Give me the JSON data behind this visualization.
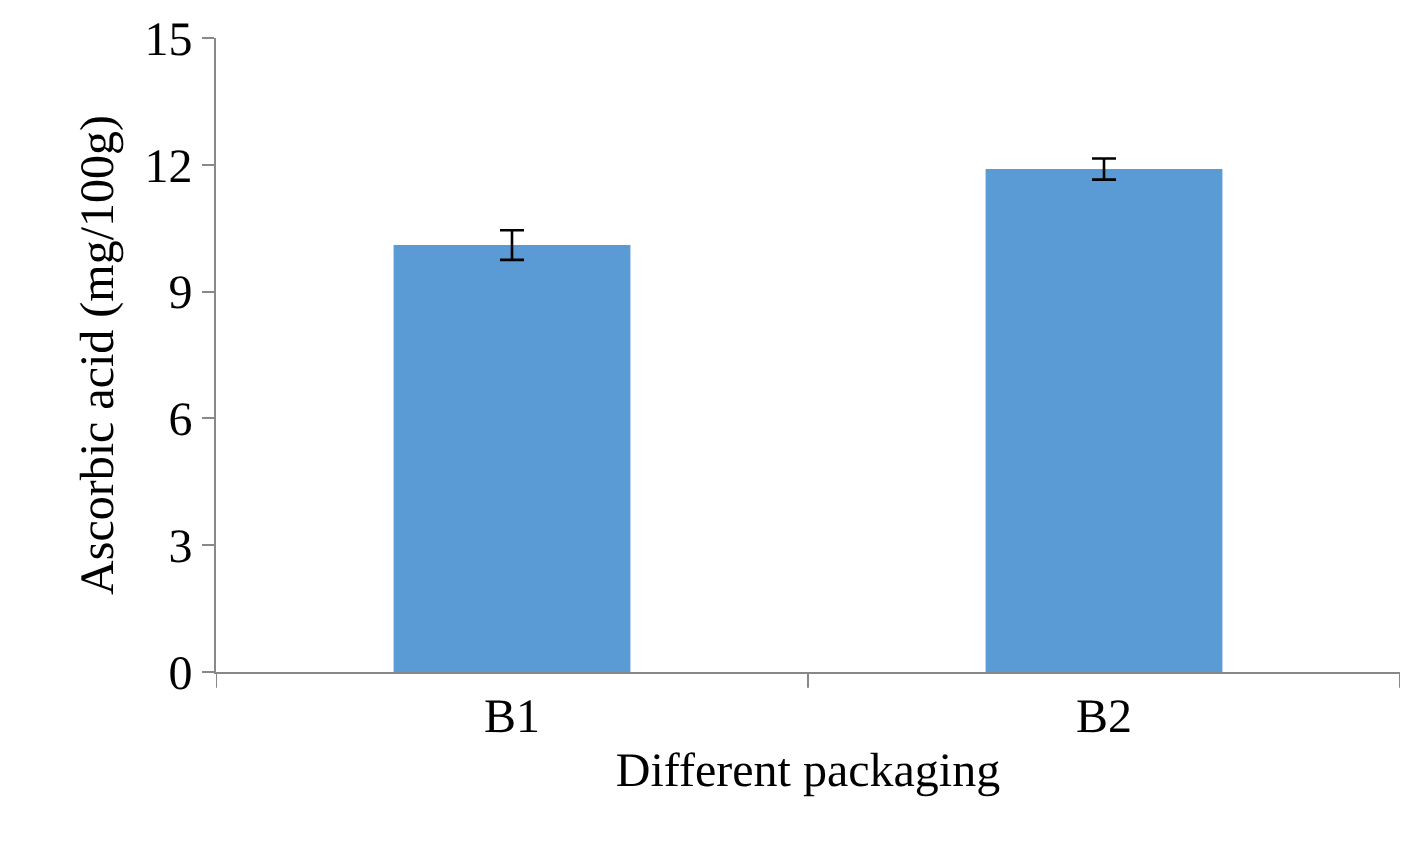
{
  "chart_data": {
    "type": "bar",
    "xlabel": "Different packaging",
    "ylabel": "Ascorbic acid (mg/100g)",
    "categories": [
      "B1",
      "B2"
    ],
    "values": [
      10.1,
      11.9
    ],
    "errors": [
      0.35,
      0.25
    ],
    "color": "#5b9bd5",
    "ylim": [
      0,
      15
    ],
    "yticks": [
      0,
      3,
      6,
      9,
      12,
      15
    ]
  }
}
